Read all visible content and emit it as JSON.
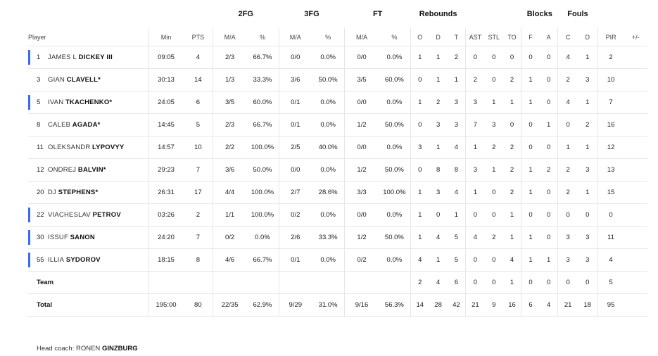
{
  "groups": {
    "fg2": "2FG",
    "fg3": "3FG",
    "ft": "FT",
    "reb": "Rebounds",
    "blk": "Blocks",
    "fouls": "Fouls"
  },
  "headers": {
    "player": "Player",
    "min": "Min",
    "pts": "PTS",
    "fg2_ma": "M/A",
    "fg2_pct": "%",
    "fg3_ma": "M/A",
    "fg3_pct": "%",
    "ft_ma": "M/A",
    "ft_pct": "%",
    "reb_o": "O",
    "reb_d": "D",
    "reb_t": "T",
    "ast": "AST",
    "stl": "STL",
    "to": "TO",
    "blk_f": "F",
    "blk_a": "A",
    "foul_c": "C",
    "foul_d": "D",
    "pir": "PIR",
    "pm": "+/-"
  },
  "players": [
    {
      "num": "1",
      "first": "JAMES L",
      "last": "DICKEY III",
      "min": "09:05",
      "pts": "4",
      "fg2_ma": "2/3",
      "fg2_pct": "66.7%",
      "fg3_ma": "0/0",
      "fg3_pct": "0.0%",
      "ft_ma": "0/0",
      "ft_pct": "0.0%",
      "o": "1",
      "d": "1",
      "t": "2",
      "ast": "0",
      "stl": "0",
      "to": "0",
      "bf": "0",
      "ba": "0",
      "fc": "4",
      "fd": "1",
      "pir": "2",
      "pm": ""
    },
    {
      "num": "3",
      "first": "GIAN",
      "last": "CLAVELL*",
      "min": "30:13",
      "pts": "14",
      "fg2_ma": "1/3",
      "fg2_pct": "33.3%",
      "fg3_ma": "3/6",
      "fg3_pct": "50.0%",
      "ft_ma": "3/5",
      "ft_pct": "60.0%",
      "o": "0",
      "d": "1",
      "t": "1",
      "ast": "2",
      "stl": "0",
      "to": "2",
      "bf": "1",
      "ba": "0",
      "fc": "2",
      "fd": "3",
      "pir": "10",
      "pm": ""
    },
    {
      "num": "5",
      "first": "IVAN",
      "last": "TKACHENKO*",
      "min": "24:05",
      "pts": "6",
      "fg2_ma": "3/5",
      "fg2_pct": "60.0%",
      "fg3_ma": "0/1",
      "fg3_pct": "0.0%",
      "ft_ma": "0/0",
      "ft_pct": "0.0%",
      "o": "1",
      "d": "2",
      "t": "3",
      "ast": "3",
      "stl": "1",
      "to": "1",
      "bf": "1",
      "ba": "0",
      "fc": "4",
      "fd": "1",
      "pir": "7",
      "pm": ""
    },
    {
      "num": "8",
      "first": "CALEB",
      "last": "AGADA*",
      "min": "14:45",
      "pts": "5",
      "fg2_ma": "2/3",
      "fg2_pct": "66.7%",
      "fg3_ma": "0/1",
      "fg3_pct": "0.0%",
      "ft_ma": "1/2",
      "ft_pct": "50.0%",
      "o": "0",
      "d": "3",
      "t": "3",
      "ast": "7",
      "stl": "3",
      "to": "0",
      "bf": "0",
      "ba": "1",
      "fc": "0",
      "fd": "2",
      "pir": "16",
      "pm": ""
    },
    {
      "num": "11",
      "first": "OLEKSANDR",
      "last": "LYPOVYY",
      "min": "14:57",
      "pts": "10",
      "fg2_ma": "2/2",
      "fg2_pct": "100.0%",
      "fg3_ma": "2/5",
      "fg3_pct": "40.0%",
      "ft_ma": "0/0",
      "ft_pct": "0.0%",
      "o": "3",
      "d": "1",
      "t": "4",
      "ast": "1",
      "stl": "2",
      "to": "2",
      "bf": "0",
      "ba": "0",
      "fc": "1",
      "fd": "1",
      "pir": "12",
      "pm": ""
    },
    {
      "num": "12",
      "first": "ONDREJ",
      "last": "BALVIN*",
      "min": "29:23",
      "pts": "7",
      "fg2_ma": "3/6",
      "fg2_pct": "50.0%",
      "fg3_ma": "0/0",
      "fg3_pct": "0.0%",
      "ft_ma": "1/2",
      "ft_pct": "50.0%",
      "o": "0",
      "d": "8",
      "t": "8",
      "ast": "3",
      "stl": "1",
      "to": "2",
      "bf": "1",
      "ba": "2",
      "fc": "2",
      "fd": "3",
      "pir": "13",
      "pm": ""
    },
    {
      "num": "20",
      "first": "DJ",
      "last": "STEPHENS*",
      "min": "26:31",
      "pts": "17",
      "fg2_ma": "4/4",
      "fg2_pct": "100.0%",
      "fg3_ma": "2/7",
      "fg3_pct": "28.6%",
      "ft_ma": "3/3",
      "ft_pct": "100.0%",
      "o": "1",
      "d": "3",
      "t": "4",
      "ast": "1",
      "stl": "0",
      "to": "2",
      "bf": "1",
      "ba": "0",
      "fc": "2",
      "fd": "1",
      "pir": "15",
      "pm": ""
    },
    {
      "num": "22",
      "first": "VIACHESLAV",
      "last": "PETROV",
      "min": "03:26",
      "pts": "2",
      "fg2_ma": "1/1",
      "fg2_pct": "100.0%",
      "fg3_ma": "0/2",
      "fg3_pct": "0.0%",
      "ft_ma": "0/0",
      "ft_pct": "0.0%",
      "o": "1",
      "d": "0",
      "t": "1",
      "ast": "0",
      "stl": "0",
      "to": "1",
      "bf": "0",
      "ba": "0",
      "fc": "0",
      "fd": "0",
      "pir": "0",
      "pm": ""
    },
    {
      "num": "30",
      "first": "ISSUF",
      "last": "SANON",
      "min": "24:20",
      "pts": "7",
      "fg2_ma": "0/2",
      "fg2_pct": "0.0%",
      "fg3_ma": "2/6",
      "fg3_pct": "33.3%",
      "ft_ma": "1/2",
      "ft_pct": "50.0%",
      "o": "1",
      "d": "4",
      "t": "5",
      "ast": "4",
      "stl": "2",
      "to": "1",
      "bf": "1",
      "ba": "0",
      "fc": "3",
      "fd": "3",
      "pir": "11",
      "pm": ""
    },
    {
      "num": "55",
      "first": "ILLIA",
      "last": "SYDOROV",
      "min": "18:15",
      "pts": "8",
      "fg2_ma": "4/6",
      "fg2_pct": "66.7%",
      "fg3_ma": "0/1",
      "fg3_pct": "0.0%",
      "ft_ma": "0/2",
      "ft_pct": "0.0%",
      "o": "4",
      "d": "1",
      "t": "5",
      "ast": "0",
      "stl": "0",
      "to": "4",
      "bf": "1",
      "ba": "1",
      "fc": "3",
      "fd": "3",
      "pir": "4",
      "pm": ""
    }
  ],
  "team": {
    "label": "Team",
    "min": "",
    "pts": "",
    "fg2_ma": "",
    "fg2_pct": "",
    "fg3_ma": "",
    "fg3_pct": "",
    "ft_ma": "",
    "ft_pct": "",
    "o": "2",
    "d": "4",
    "t": "6",
    "ast": "0",
    "stl": "0",
    "to": "1",
    "bf": "0",
    "ba": "0",
    "fc": "0",
    "fd": "0",
    "pir": "5",
    "pm": ""
  },
  "total": {
    "label": "Total",
    "min": "195:00",
    "pts": "80",
    "fg2_ma": "22/35",
    "fg2_pct": "62.9%",
    "fg3_ma": "9/29",
    "fg3_pct": "31.0%",
    "ft_ma": "9/16",
    "ft_pct": "56.3%",
    "o": "14",
    "d": "28",
    "t": "42",
    "ast": "21",
    "stl": "9",
    "to": "16",
    "bf": "6",
    "ba": "4",
    "fc": "21",
    "fd": "18",
    "pir": "95",
    "pm": ""
  },
  "coach": {
    "label": "Head coach:",
    "first": "RONEN",
    "last": "GINZBURG"
  },
  "colors": {
    "accent": "#3b6cf0",
    "divider": "#e6e6e6"
  }
}
